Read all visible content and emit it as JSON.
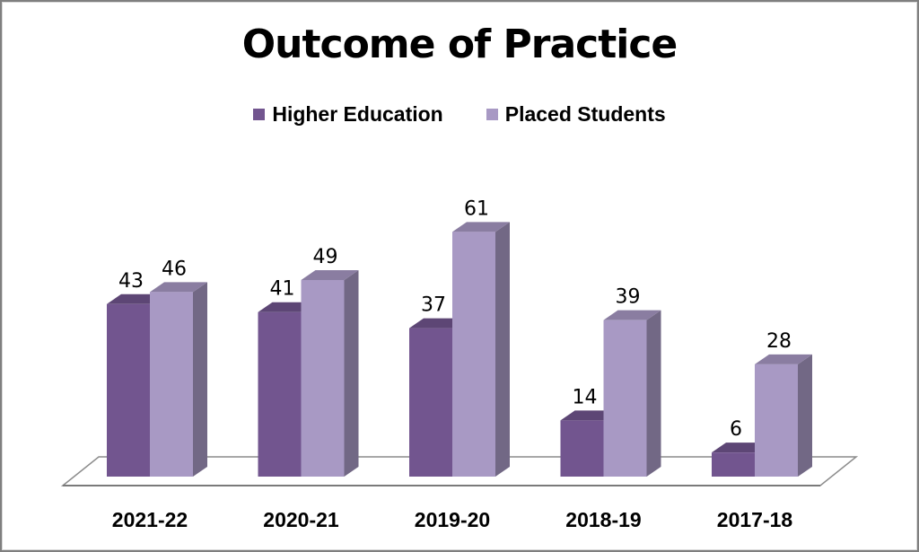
{
  "chart_data": {
    "type": "bar",
    "title": "Outcome of Practice",
    "categories": [
      "2021-22",
      "2020-21",
      "2019-20",
      "2018-19",
      "2017-18"
    ],
    "series": [
      {
        "name": "Higher Education",
        "values": [
          43,
          41,
          37,
          14,
          6
        ],
        "color": "#72558f"
      },
      {
        "name": "Placed Students",
        "values": [
          46,
          49,
          61,
          39,
          28
        ],
        "color": "#a899c4"
      }
    ],
    "ylim": [
      0,
      70
    ],
    "three_d": true,
    "gridlines": false,
    "legend_position": "top"
  }
}
